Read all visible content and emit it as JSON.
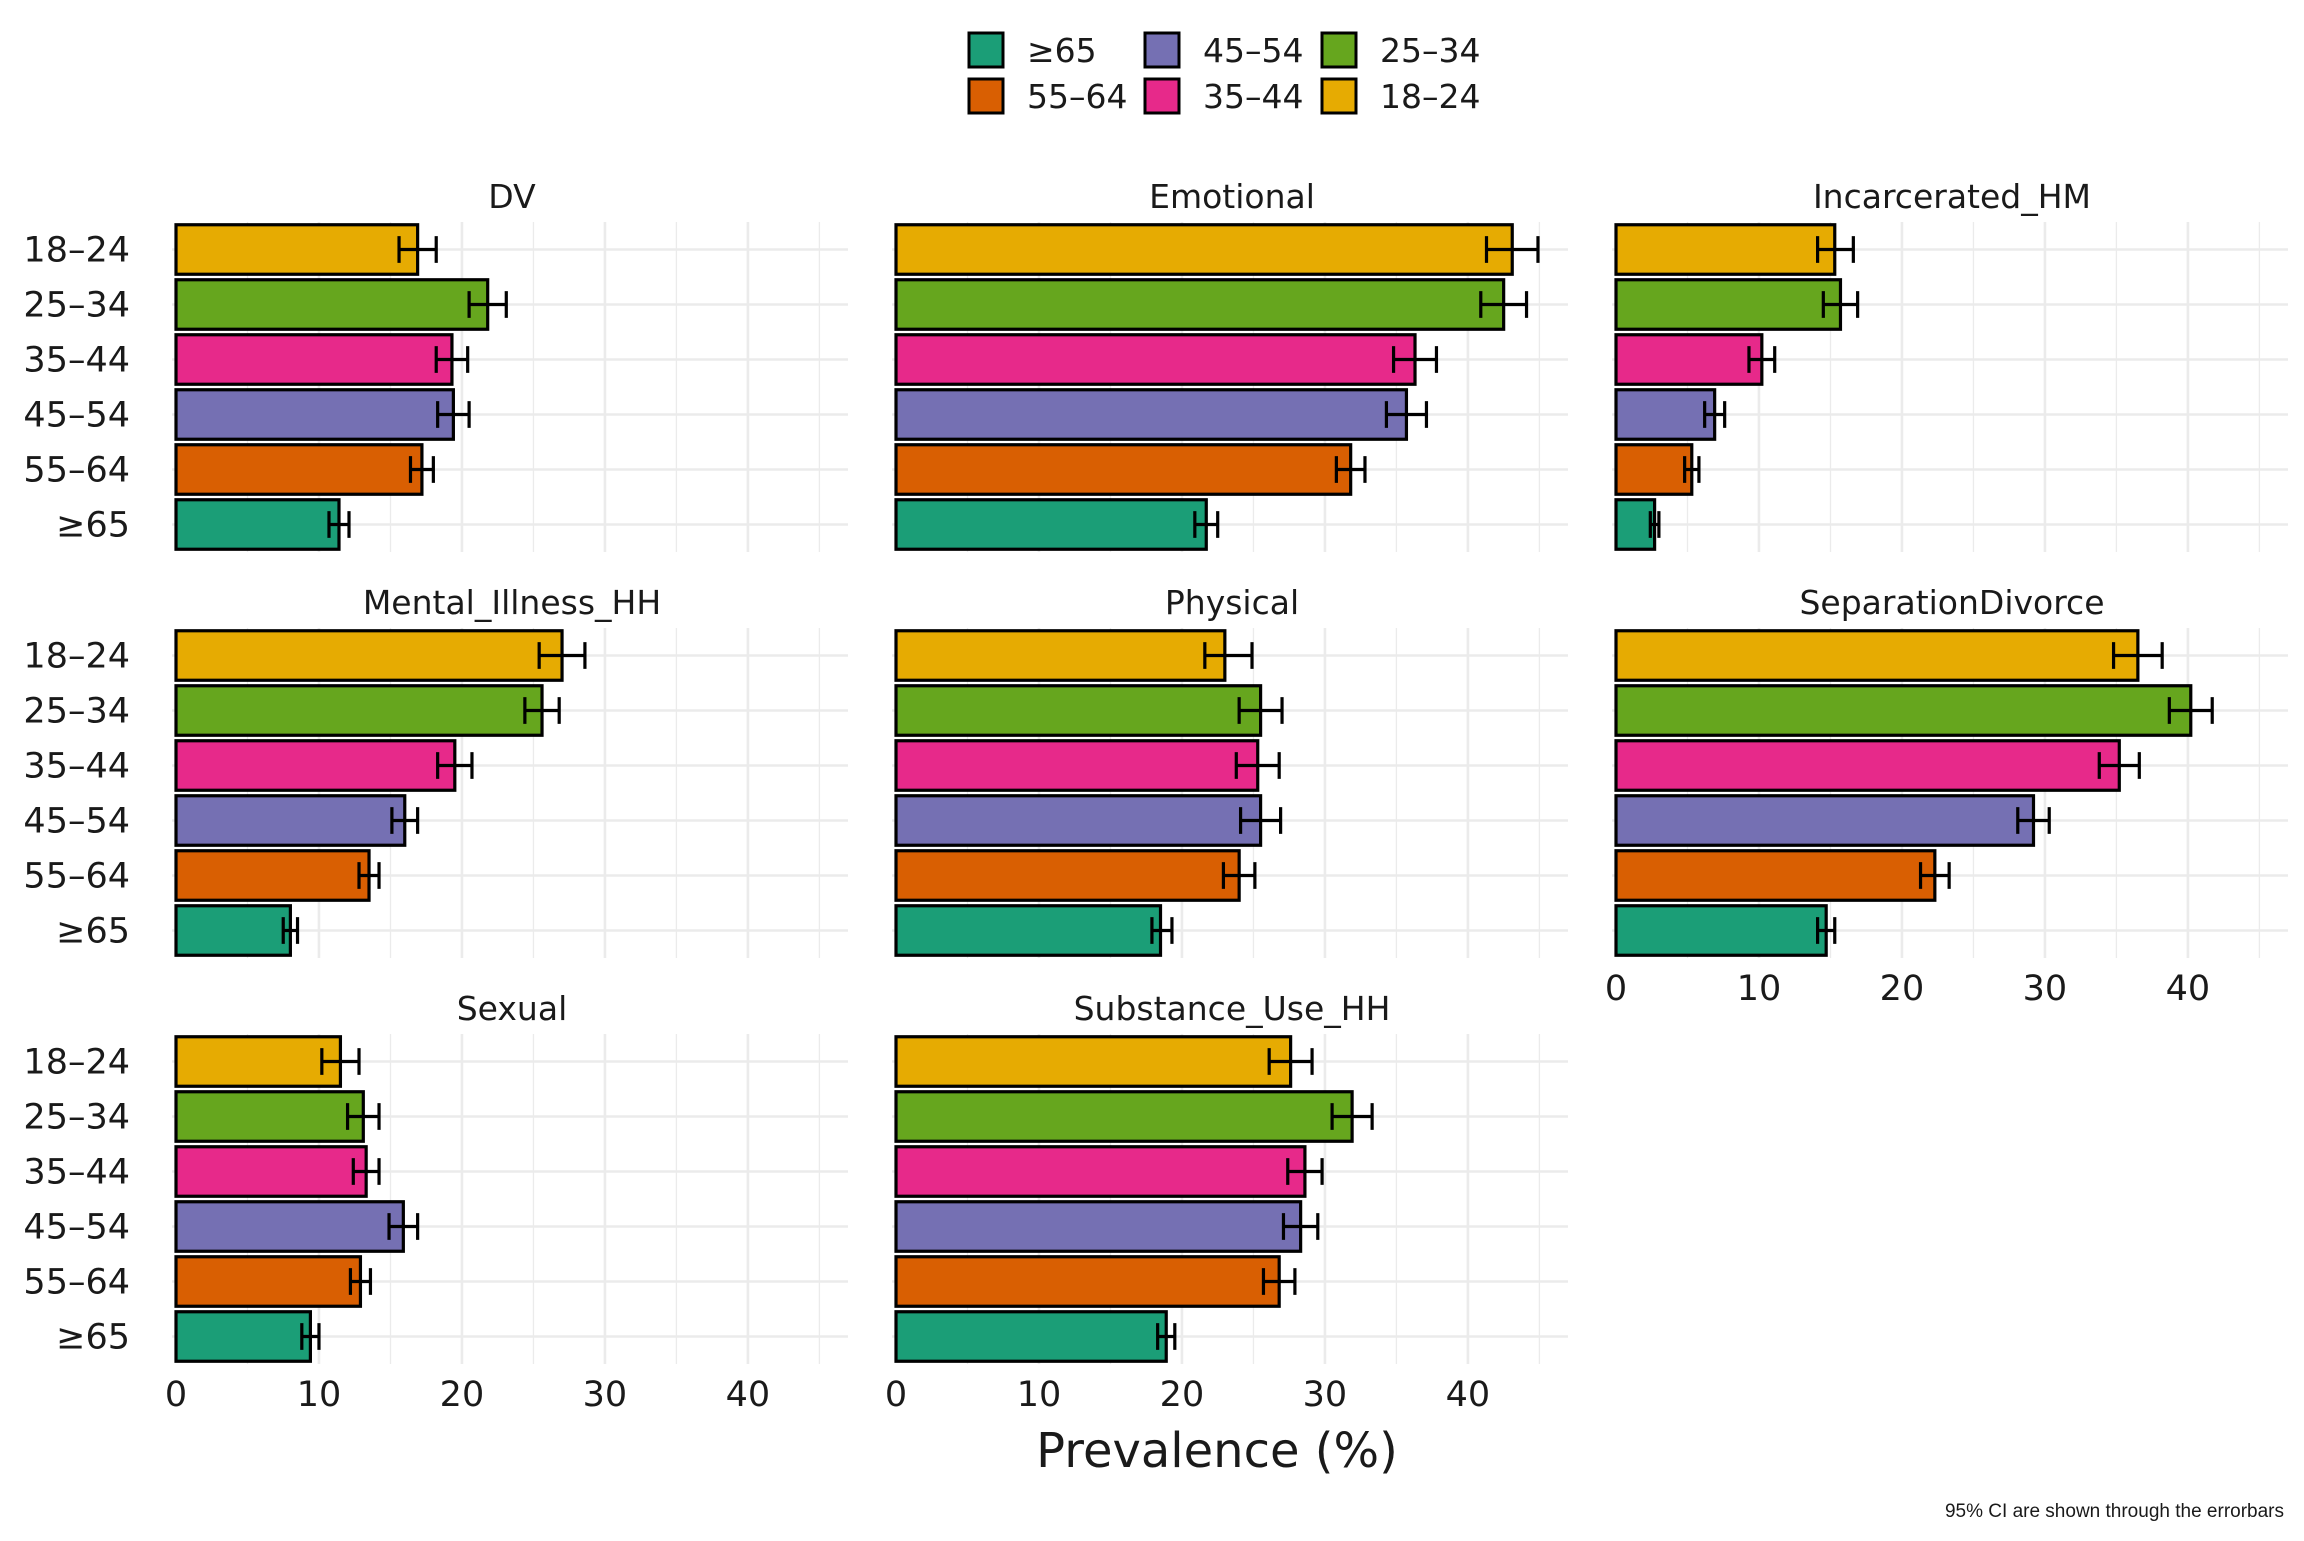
{
  "chart_data": {
    "type": "bar",
    "orientation": "horizontal",
    "xlabel": "Prevalence (%)",
    "ylabel": "",
    "xlim": [
      0,
      47
    ],
    "x_ticks": [
      0,
      10,
      20,
      30,
      40
    ],
    "caption": "95% CI are shown through the errorbars",
    "grid": true,
    "legend_position": "top",
    "categories": [
      "18–24",
      "25–34",
      "35–44",
      "45–54",
      "55–64",
      "≥65"
    ],
    "legend": [
      {
        "label": "≥65",
        "color": "#1b9e77"
      },
      {
        "label": "45–54",
        "color": "#7570b3"
      },
      {
        "label": "25–34",
        "color": "#66a61e"
      },
      {
        "label": "55–64",
        "color": "#d95f02"
      },
      {
        "label": "35–44",
        "color": "#e7298a"
      },
      {
        "label": "18–24",
        "color": "#e6ab02"
      }
    ],
    "colors": {
      "18–24": "#e6ab02",
      "25–34": "#66a61e",
      "35–44": "#e7298a",
      "45–54": "#7570b3",
      "55–64": "#d95f02",
      "≥65": "#1b9e77"
    },
    "panels": [
      {
        "title": "DV",
        "values": [
          16.9,
          21.8,
          19.3,
          19.4,
          17.2,
          11.4
        ],
        "ci": [
          [
            15.6,
            18.2
          ],
          [
            20.5,
            23.1
          ],
          [
            18.2,
            20.4
          ],
          [
            18.3,
            20.5
          ],
          [
            16.4,
            18.0
          ],
          [
            10.7,
            12.1
          ]
        ]
      },
      {
        "title": "Emotional",
        "values": [
          43.1,
          42.5,
          36.3,
          35.7,
          31.8,
          21.7
        ],
        "ci": [
          [
            41.3,
            44.9
          ],
          [
            40.9,
            44.1
          ],
          [
            34.8,
            37.8
          ],
          [
            34.3,
            37.1
          ],
          [
            30.8,
            32.8
          ],
          [
            20.9,
            22.5
          ]
        ]
      },
      {
        "title": "Incarcerated_HM",
        "values": [
          15.3,
          15.7,
          10.2,
          6.9,
          5.3,
          2.7
        ],
        "ci": [
          [
            14.1,
            16.6
          ],
          [
            14.5,
            16.9
          ],
          [
            9.3,
            11.1
          ],
          [
            6.2,
            7.6
          ],
          [
            4.8,
            5.8
          ],
          [
            2.4,
            3.0
          ]
        ]
      },
      {
        "title": "Mental_Illness_HH",
        "values": [
          27.0,
          25.6,
          19.5,
          16.0,
          13.5,
          8.0
        ],
        "ci": [
          [
            25.4,
            28.6
          ],
          [
            24.4,
            26.8
          ],
          [
            18.3,
            20.7
          ],
          [
            15.1,
            16.9
          ],
          [
            12.8,
            14.2
          ],
          [
            7.5,
            8.5
          ]
        ]
      },
      {
        "title": "Physical",
        "values": [
          23.0,
          25.5,
          25.3,
          25.5,
          24.0,
          18.5
        ],
        "ci": [
          [
            21.6,
            24.9
          ],
          [
            24.0,
            27.0
          ],
          [
            23.8,
            26.8
          ],
          [
            24.1,
            26.9
          ],
          [
            22.9,
            25.1
          ],
          [
            17.9,
            19.3
          ]
        ]
      },
      {
        "title": "SeparationDivorce",
        "values": [
          36.5,
          40.2,
          35.2,
          29.2,
          22.3,
          14.7
        ],
        "ci": [
          [
            34.8,
            38.2
          ],
          [
            38.7,
            41.7
          ],
          [
            33.8,
            36.6
          ],
          [
            28.1,
            30.3
          ],
          [
            21.3,
            23.3
          ],
          [
            14.1,
            15.3
          ]
        ]
      },
      {
        "title": "Sexual",
        "values": [
          11.5,
          13.1,
          13.3,
          15.9,
          12.9,
          9.4
        ],
        "ci": [
          [
            10.2,
            12.8
          ],
          [
            12.0,
            14.2
          ],
          [
            12.4,
            14.2
          ],
          [
            14.9,
            16.9
          ],
          [
            12.2,
            13.6
          ],
          [
            8.8,
            10.0
          ]
        ]
      },
      {
        "title": "Substance_Use_HH",
        "values": [
          27.6,
          31.9,
          28.6,
          28.3,
          26.8,
          18.9
        ],
        "ci": [
          [
            26.1,
            29.1
          ],
          [
            30.5,
            33.3
          ],
          [
            27.4,
            29.8
          ],
          [
            27.1,
            29.5
          ],
          [
            25.7,
            27.9
          ],
          [
            18.3,
            19.5
          ]
        ]
      }
    ]
  }
}
